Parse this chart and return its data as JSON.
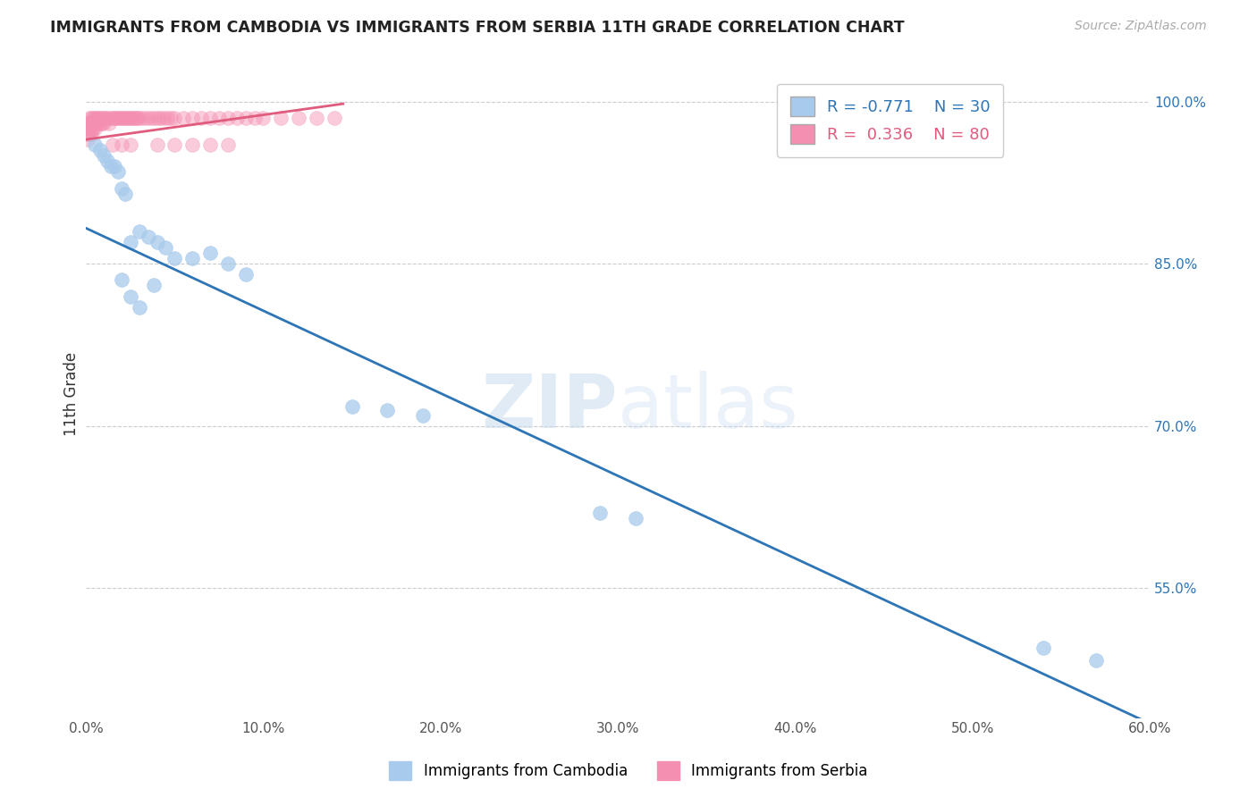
{
  "title": "IMMIGRANTS FROM CAMBODIA VS IMMIGRANTS FROM SERBIA 11TH GRADE CORRELATION CHART",
  "source_text": "Source: ZipAtlas.com",
  "xlabel": "",
  "ylabel": "11th Grade",
  "legend_labels": [
    "Immigrants from Cambodia",
    "Immigrants from Serbia"
  ],
  "blue_R": -0.771,
  "blue_N": 30,
  "pink_R": 0.336,
  "pink_N": 80,
  "blue_color": "#A8CAEC",
  "pink_color": "#F48FB1",
  "blue_line_color": "#2E75B6",
  "pink_line_color": "#E05C7E",
  "xlim": [
    0.0,
    0.6
  ],
  "ylim": [
    0.43,
    1.03
  ],
  "yticks_right": [
    0.55,
    0.7,
    0.85,
    1.0
  ],
  "ytick_labels_right": [
    "55.0%",
    "70.0%",
    "85.0%",
    "100.0%"
  ],
  "xticks": [
    0.0,
    0.1,
    0.2,
    0.3,
    0.4,
    0.5,
    0.6
  ],
  "xtick_labels": [
    "0.0%",
    "10.0%",
    "20.0%",
    "30.0%",
    "40.0%",
    "50.0%",
    "60.0%"
  ],
  "background_color": "#FFFFFF",
  "watermark_zip": "ZIP",
  "watermark_atlas": "atlas",
  "blue_scatter_x": [
    0.005,
    0.008,
    0.01,
    0.012,
    0.014,
    0.016,
    0.018,
    0.02,
    0.022,
    0.025,
    0.03,
    0.035,
    0.04,
    0.045,
    0.05,
    0.06,
    0.07,
    0.08,
    0.09,
    0.02,
    0.025,
    0.03,
    0.038,
    0.15,
    0.17,
    0.19,
    0.29,
    0.31,
    0.57,
    0.54
  ],
  "blue_scatter_y": [
    0.96,
    0.955,
    0.95,
    0.945,
    0.94,
    0.94,
    0.935,
    0.92,
    0.915,
    0.87,
    0.88,
    0.875,
    0.87,
    0.865,
    0.855,
    0.855,
    0.86,
    0.85,
    0.84,
    0.835,
    0.82,
    0.81,
    0.83,
    0.718,
    0.715,
    0.71,
    0.62,
    0.615,
    0.483,
    0.495
  ],
  "pink_scatter_x": [
    0.001,
    0.001,
    0.001,
    0.001,
    0.002,
    0.002,
    0.002,
    0.002,
    0.003,
    0.003,
    0.003,
    0.003,
    0.004,
    0.004,
    0.004,
    0.005,
    0.005,
    0.005,
    0.006,
    0.006,
    0.007,
    0.007,
    0.008,
    0.008,
    0.009,
    0.009,
    0.01,
    0.01,
    0.011,
    0.012,
    0.013,
    0.014,
    0.015,
    0.016,
    0.017,
    0.018,
    0.019,
    0.02,
    0.021,
    0.022,
    0.023,
    0.024,
    0.025,
    0.026,
    0.027,
    0.028,
    0.029,
    0.03,
    0.032,
    0.034,
    0.036,
    0.038,
    0.04,
    0.042,
    0.044,
    0.046,
    0.048,
    0.05,
    0.055,
    0.06,
    0.065,
    0.07,
    0.075,
    0.08,
    0.085,
    0.09,
    0.095,
    0.1,
    0.11,
    0.12,
    0.13,
    0.14,
    0.04,
    0.05,
    0.06,
    0.07,
    0.08,
    0.025,
    0.015,
    0.02
  ],
  "pink_scatter_y": [
    0.98,
    0.975,
    0.97,
    0.965,
    0.985,
    0.98,
    0.975,
    0.97,
    0.985,
    0.98,
    0.975,
    0.97,
    0.985,
    0.98,
    0.975,
    0.985,
    0.98,
    0.975,
    0.985,
    0.98,
    0.985,
    0.98,
    0.985,
    0.98,
    0.985,
    0.98,
    0.985,
    0.98,
    0.985,
    0.985,
    0.98,
    0.985,
    0.985,
    0.985,
    0.985,
    0.985,
    0.985,
    0.985,
    0.985,
    0.985,
    0.985,
    0.985,
    0.985,
    0.985,
    0.985,
    0.985,
    0.985,
    0.985,
    0.985,
    0.985,
    0.985,
    0.985,
    0.985,
    0.985,
    0.985,
    0.985,
    0.985,
    0.985,
    0.985,
    0.985,
    0.985,
    0.985,
    0.985,
    0.985,
    0.985,
    0.985,
    0.985,
    0.985,
    0.985,
    0.985,
    0.985,
    0.985,
    0.96,
    0.96,
    0.96,
    0.96,
    0.96,
    0.96,
    0.96,
    0.96
  ],
  "blue_line_x": [
    0.0,
    0.6
  ],
  "blue_line_y": [
    0.883,
    0.425
  ],
  "pink_line_x": [
    0.0,
    0.145
  ],
  "pink_line_y": [
    0.965,
    0.998
  ]
}
